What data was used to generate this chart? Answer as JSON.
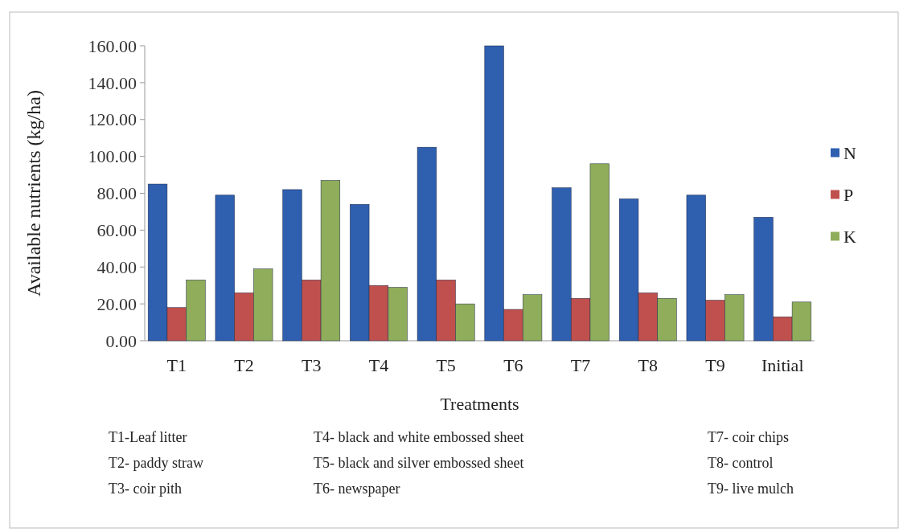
{
  "chart_data": {
    "type": "bar",
    "xlabel": "Treatments",
    "ylabel": "Available nutrients (kg/ha)",
    "categories": [
      "T1",
      "T2",
      "T3",
      "T4",
      "T5",
      "T6",
      "T7",
      "T8",
      "T9",
      "Initial"
    ],
    "series": [
      {
        "name": "N",
        "color": "#2f5faf",
        "values": [
          85,
          79,
          82,
          74,
          105,
          160,
          83,
          77,
          79,
          67
        ]
      },
      {
        "name": "P",
        "color": "#c0504d",
        "values": [
          18,
          26,
          33,
          30,
          33,
          17,
          23,
          26,
          22,
          13
        ]
      },
      {
        "name": "K",
        "color": "#8fad5a",
        "values": [
          33,
          39,
          87,
          29,
          20,
          25,
          96,
          23,
          25,
          21
        ]
      }
    ],
    "ylim": [
      0,
      160
    ],
    "yticks": [
      {
        "value": 0,
        "label": "0.00"
      },
      {
        "value": 20,
        "label": "20.00"
      },
      {
        "value": 40,
        "label": "40.00"
      },
      {
        "value": 60,
        "label": "60.00"
      },
      {
        "value": 80,
        "label": "80.00"
      },
      {
        "value": 100,
        "label": "100.00"
      },
      {
        "value": 120,
        "label": "120.00"
      },
      {
        "value": 140,
        "label": "140.00"
      },
      {
        "value": 160,
        "label": "160.00"
      }
    ],
    "legend": "right",
    "annotations": [
      "T1-Leaf litter",
      "T2- paddy straw",
      "T3- coir pith",
      "T4- black and white embossed sheet",
      "T5- black and silver embossed sheet",
      "T6- newspaper",
      "T7- coir chips",
      "T8- control",
      "T9- live mulch"
    ]
  }
}
